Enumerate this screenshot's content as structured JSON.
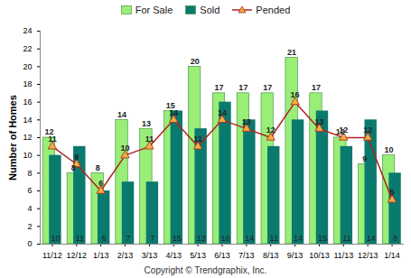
{
  "chart_data": {
    "type": "bar",
    "y_label": "Number of Homes",
    "caption": "Copyright © Trendgraphix, Inc.",
    "categories": [
      "11/12",
      "12/12",
      "1/13",
      "2/13",
      "3/13",
      "4/13",
      "5/13",
      "6/13",
      "7/13",
      "8/13",
      "9/13",
      "10/13",
      "11/13",
      "12/13",
      "1/14"
    ],
    "series": [
      {
        "name": "For Sale",
        "type": "bar",
        "color": "#99ee77",
        "values": [
          12,
          8,
          8,
          14,
          13,
          15,
          20,
          17,
          17,
          17,
          21,
          17,
          12,
          9,
          10
        ]
      },
      {
        "name": "Sold",
        "type": "bar",
        "color": "#0b7a6e",
        "values": [
          10,
          11,
          6,
          7,
          7,
          15,
          13,
          16,
          14,
          11,
          14,
          15,
          11,
          14,
          8
        ]
      },
      {
        "name": "Pended",
        "type": "line",
        "color": "#b22222",
        "marker": "triangle",
        "line_style": "solid",
        "values": [
          11,
          9,
          6,
          10,
          11,
          14,
          11,
          14,
          13,
          12,
          16,
          13,
          12,
          12,
          5
        ]
      }
    ],
    "ylim": [
      0,
      24
    ],
    "yticks": [
      0,
      2,
      4,
      6,
      8,
      10,
      12,
      14,
      16,
      18,
      20,
      22,
      24
    ],
    "grid": false,
    "legend": "top",
    "data_labels": true
  }
}
